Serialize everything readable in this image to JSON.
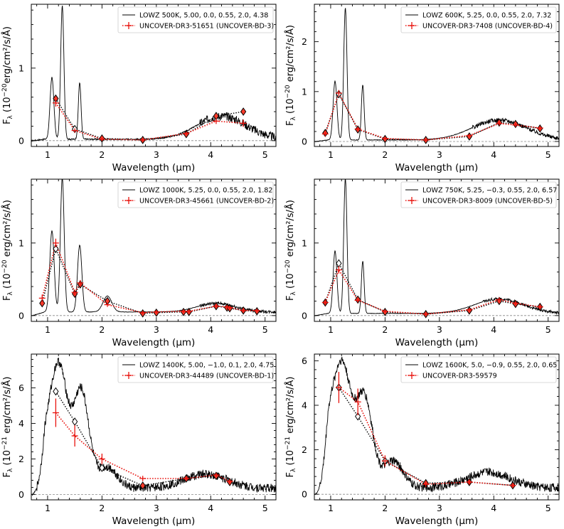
{
  "chart_data": [
    {
      "type": "line",
      "xlabel": "Wavelength (μm)",
      "ylabel_prefix": "F",
      "ylabel_sub": "λ",
      "ylabel_unit_pre": " (10",
      "ylabel_exp": "−20",
      "ylabel_unit_post": "erg/cm²/s/Å)",
      "xlim": [
        0.7,
        5.2
      ],
      "ylim": [
        -0.08,
        1.88
      ],
      "xticks": [
        1,
        2,
        3,
        4,
        5
      ],
      "yticks": [
        0,
        1
      ],
      "model_label": "LOWZ 500K, 5.00, 0.0, 0.55, 2.0, 4.38",
      "obs_label": "UNCOVER-DR3-51651 (UNCOVER-BD-3)",
      "model_peaks": [
        [
          1.08,
          0.85,
          0.035
        ],
        [
          1.27,
          1.84,
          0.03
        ],
        [
          1.59,
          0.78,
          0.025
        ],
        [
          4.2,
          0.32,
          0.45
        ]
      ],
      "model_base": 0.02,
      "model_noise": 0.06,
      "model_noise_start": 3.8,
      "synth_phot": {
        "x": [
          1.15,
          1.5,
          2.0,
          2.75,
          3.55,
          4.1,
          4.6
        ],
        "y": [
          0.58,
          0.16,
          0.03,
          0.01,
          0.09,
          0.34,
          0.4
        ]
      },
      "obs_phot": {
        "x": [
          1.15,
          1.5,
          2.0,
          2.75,
          3.55,
          4.1,
          4.6
        ],
        "y": [
          0.52,
          0.14,
          0.02,
          0.01,
          0.1,
          0.27,
          0.24
        ],
        "yerr": [
          0.05,
          0.03,
          0.02,
          0.02,
          0.02,
          0.04,
          0.05
        ]
      }
    },
    {
      "type": "line",
      "xlabel": "Wavelength (μm)",
      "ylabel_prefix": "F",
      "ylabel_sub": "λ",
      "ylabel_unit_pre": " (10",
      "ylabel_exp": "−20",
      "ylabel_unit_post": " erg/cm²/s/Å)",
      "xlim": [
        0.7,
        5.2
      ],
      "ylim": [
        -0.1,
        2.75
      ],
      "xticks": [
        1,
        2,
        3,
        4,
        5
      ],
      "yticks": [
        0,
        1,
        2
      ],
      "model_label": "LOWZ 600K, 5.25, 0.0, 0.55, 2.0, 7.32",
      "obs_label": "UNCOVER-DR3-7408 (UNCOVER-BD-4)",
      "model_peaks": [
        [
          1.08,
          1.18,
          0.035
        ],
        [
          1.27,
          2.65,
          0.03
        ],
        [
          1.59,
          1.1,
          0.025
        ],
        [
          4.1,
          0.4,
          0.5
        ]
      ],
      "model_base": 0.03,
      "model_noise": 0.04,
      "model_noise_start": 3.6,
      "synth_phot": {
        "x": [
          0.9,
          1.15,
          1.5,
          2.0,
          2.75,
          3.55,
          4.1,
          4.4,
          4.85
        ],
        "y": [
          0.17,
          0.95,
          0.24,
          0.05,
          0.03,
          0.1,
          0.38,
          0.35,
          0.26
        ]
      },
      "obs_phot": {
        "x": [
          0.9,
          1.15,
          1.5,
          2.0,
          2.75,
          3.55,
          4.1,
          4.4,
          4.85
        ],
        "y": [
          0.15,
          0.97,
          0.25,
          0.06,
          0.03,
          0.12,
          0.36,
          0.33,
          0.27
        ],
        "yerr": [
          0.05,
          0.06,
          0.04,
          0.02,
          0.02,
          0.03,
          0.04,
          0.04,
          0.04
        ]
      }
    },
    {
      "type": "line",
      "xlabel": "Wavelength (μm)",
      "ylabel_prefix": "F",
      "ylabel_sub": "λ",
      "ylabel_unit_pre": " (10",
      "ylabel_exp": "−20",
      "ylabel_unit_post": " erg/cm²/s/Å)",
      "xlim": [
        0.7,
        5.2
      ],
      "ylim": [
        -0.08,
        1.88
      ],
      "xticks": [
        1,
        2,
        3,
        4,
        5
      ],
      "yticks": [
        0,
        1
      ],
      "model_label": "LOWZ 1000K, 5.25, 0.0, 0.55, 2.0, 1.82",
      "obs_label": "UNCOVER-DR3-45661 (UNCOVER-BD-2)",
      "model_peaks": [
        [
          1.08,
          1.12,
          0.04
        ],
        [
          1.27,
          1.85,
          0.035
        ],
        [
          1.59,
          0.92,
          0.04
        ],
        [
          2.1,
          0.22,
          0.08
        ],
        [
          4.1,
          0.12,
          0.35
        ]
      ],
      "model_base": 0.05,
      "model_noise": 0.02,
      "model_noise_start": 3.8,
      "synth_phot": {
        "x": [
          0.9,
          1.15,
          1.5,
          1.6,
          2.1,
          2.75,
          3.0,
          3.5,
          3.6,
          4.1,
          4.3,
          4.35,
          4.6,
          4.85
        ],
        "y": [
          0.17,
          0.92,
          0.3,
          0.43,
          0.2,
          0.03,
          0.04,
          0.05,
          0.05,
          0.13,
          0.11,
          0.1,
          0.07,
          0.06
        ]
      },
      "obs_phot": {
        "x": [
          0.9,
          1.15,
          1.5,
          1.6,
          2.1,
          2.75,
          3.0,
          3.5,
          3.6,
          4.1,
          4.3,
          4.35,
          4.6,
          4.85
        ],
        "y": [
          0.24,
          1.0,
          0.32,
          0.45,
          0.15,
          0.04,
          0.05,
          0.06,
          0.06,
          0.13,
          0.12,
          0.11,
          0.07,
          0.07
        ],
        "yerr": [
          0.05,
          0.06,
          0.04,
          0.04,
          0.03,
          0.02,
          0.02,
          0.02,
          0.02,
          0.02,
          0.02,
          0.02,
          0.02,
          0.02
        ]
      }
    },
    {
      "type": "line",
      "xlabel": "Wavelength (μm)",
      "ylabel_prefix": "F",
      "ylabel_sub": "λ",
      "ylabel_unit_pre": " (10",
      "ylabel_exp": "−20",
      "ylabel_unit_post": " erg/cm²/s/Å)",
      "xlim": [
        0.7,
        5.2
      ],
      "ylim": [
        -0.08,
        1.88
      ],
      "xticks": [
        1,
        2,
        3,
        4,
        5
      ],
      "yticks": [
        0,
        1
      ],
      "model_label": "LOWZ 750K, 5.25, −0.3, 0.55, 2.0, 6.57",
      "obs_label": "UNCOVER-DR3-8009 (UNCOVER-BD-5)",
      "model_peaks": [
        [
          1.08,
          0.86,
          0.035
        ],
        [
          1.27,
          1.86,
          0.03
        ],
        [
          1.59,
          0.72,
          0.025
        ],
        [
          4.1,
          0.2,
          0.45
        ]
      ],
      "model_base": 0.03,
      "model_noise": 0.02,
      "model_noise_start": 3.8,
      "synth_phot": {
        "x": [
          0.9,
          1.15,
          1.5,
          2.0,
          2.75,
          3.55,
          4.1,
          4.4,
          4.85
        ],
        "y": [
          0.18,
          0.72,
          0.22,
          0.05,
          0.02,
          0.07,
          0.2,
          0.16,
          0.12
        ]
      },
      "obs_phot": {
        "x": [
          0.9,
          1.15,
          1.5,
          2.0,
          2.75,
          3.55,
          4.1,
          4.4,
          4.85
        ],
        "y": [
          0.18,
          0.63,
          0.21,
          0.06,
          0.02,
          0.08,
          0.22,
          0.17,
          0.12
        ],
        "yerr": [
          0.04,
          0.05,
          0.03,
          0.02,
          0.02,
          0.02,
          0.03,
          0.03,
          0.03
        ]
      }
    },
    {
      "type": "line",
      "xlabel": "Wavelength (μm)",
      "ylabel_prefix": "F",
      "ylabel_sub": "λ",
      "ylabel_unit_pre": " (10",
      "ylabel_exp": "−21",
      "ylabel_unit_post": " erg/cm²/s/Å)",
      "xlim": [
        0.7,
        5.2
      ],
      "ylim": [
        -0.3,
        7.9
      ],
      "xticks": [
        1,
        2,
        3,
        4,
        5
      ],
      "yticks": [
        0,
        2,
        4,
        6
      ],
      "model_label": "LOWZ 1400K, 5.00, −1.0, 0.1, 2.0, 4.75",
      "obs_label": "UNCOVER-DR3-44489 (UNCOVER-BD-1)",
      "model_peaks": [
        [
          1.2,
          7.0,
          0.16
        ],
        [
          1.62,
          5.4,
          0.14
        ],
        [
          2.1,
          1.2,
          0.18
        ],
        [
          0.95,
          1.5,
          0.1
        ],
        [
          3.9,
          0.8,
          0.4
        ]
      ],
      "model_base": 0.35,
      "model_noise": 0.25,
      "model_noise_start": 0.8,
      "synth_phot": {
        "x": [
          1.15,
          1.5,
          2.0,
          2.75,
          3.55,
          4.1,
          4.35
        ],
        "y": [
          5.8,
          4.1,
          1.5,
          0.5,
          0.9,
          1.05,
          0.7
        ]
      },
      "obs_phot": {
        "x": [
          1.15,
          1.5,
          2.0,
          2.75,
          3.55,
          4.1,
          4.35
        ],
        "y": [
          4.6,
          3.3,
          2.0,
          0.9,
          0.9,
          1.1,
          0.75
        ],
        "yerr": [
          0.8,
          0.6,
          0.3,
          0.15,
          0.12,
          0.12,
          0.12
        ]
      }
    },
    {
      "type": "line",
      "xlabel": "Wavelength (μm)",
      "ylabel_prefix": "F",
      "ylabel_sub": "λ",
      "ylabel_unit_pre": " (10",
      "ylabel_exp": "−21",
      "ylabel_unit_post": " erg/cm²/s/Å)",
      "xlim": [
        0.7,
        5.2
      ],
      "ylim": [
        -0.25,
        6.3
      ],
      "xticks": [
        1,
        2,
        3,
        4,
        5
      ],
      "yticks": [
        0,
        2,
        4,
        6
      ],
      "model_label": "LOWZ 1600K, 5.0, −0.9, 0.55, 2.0, 0.65",
      "obs_label": "UNCOVER-DR3-59579",
      "model_peaks": [
        [
          1.2,
          5.6,
          0.17
        ],
        [
          1.62,
          4.0,
          0.15
        ],
        [
          2.15,
          1.2,
          0.18
        ],
        [
          0.95,
          1.5,
          0.1
        ],
        [
          3.9,
          0.7,
          0.4
        ]
      ],
      "model_base": 0.3,
      "model_noise": 0.2,
      "model_noise_start": 0.8,
      "synth_phot": {
        "x": [
          1.15,
          1.5,
          2.0,
          2.75,
          3.55,
          4.35
        ],
        "y": [
          4.8,
          3.5,
          1.5,
          0.5,
          0.55,
          0.4
        ]
      },
      "obs_phot": {
        "x": [
          1.15,
          1.5,
          2.0,
          2.75,
          3.55,
          4.35
        ],
        "y": [
          4.8,
          4.15,
          1.5,
          0.45,
          0.55,
          0.4
        ],
        "yerr": [
          0.7,
          0.6,
          0.25,
          0.12,
          0.1,
          0.1
        ]
      }
    }
  ]
}
